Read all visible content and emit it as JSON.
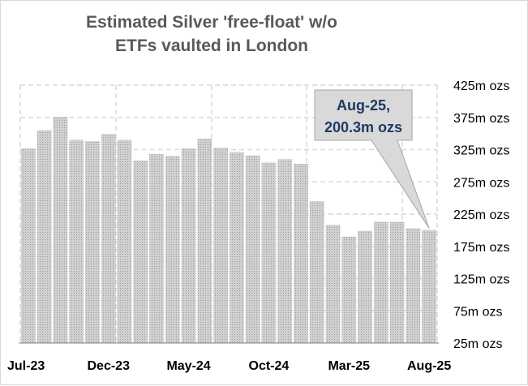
{
  "chart_data": {
    "type": "bar",
    "title_lines": [
      "Estimated Silver 'free-float' w/o",
      "ETFs vaulted in London"
    ],
    "y_unit_suffix": "m ozs",
    "ylim": [
      25,
      425
    ],
    "y_ticks": [
      25,
      75,
      125,
      175,
      225,
      275,
      325,
      375,
      425
    ],
    "x_tick_labels": [
      "Jul-23",
      "Dec-23",
      "May-24",
      "Oct-24",
      "Mar-25",
      "Aug-25"
    ],
    "x_tick_indices": [
      0,
      5,
      10,
      15,
      20,
      25
    ],
    "categories": [
      "Jul-23",
      "Aug-23",
      "Sep-23",
      "Oct-23",
      "Nov-23",
      "Dec-23",
      "Jan-24",
      "Feb-24",
      "Mar-24",
      "Apr-24",
      "May-24",
      "Jun-24",
      "Jul-24",
      "Aug-24",
      "Sep-24",
      "Oct-24",
      "Nov-24",
      "Dec-24",
      "Jan-25",
      "Feb-25",
      "Mar-25",
      "Apr-25",
      "May-25",
      "Jun-25",
      "Jul-25",
      "Aug-25"
    ],
    "values": [
      327,
      355,
      376,
      340,
      338,
      349,
      340,
      308,
      318,
      315,
      327,
      342,
      328,
      321,
      316,
      305,
      310,
      303,
      245,
      208,
      190,
      199,
      213,
      213,
      203,
      200.3
    ],
    "bar_color": "#bfbfbf",
    "grid": true,
    "annotation": {
      "line1": "Aug-25,",
      "line2": "200.3m ozs",
      "target_index": 25
    }
  }
}
